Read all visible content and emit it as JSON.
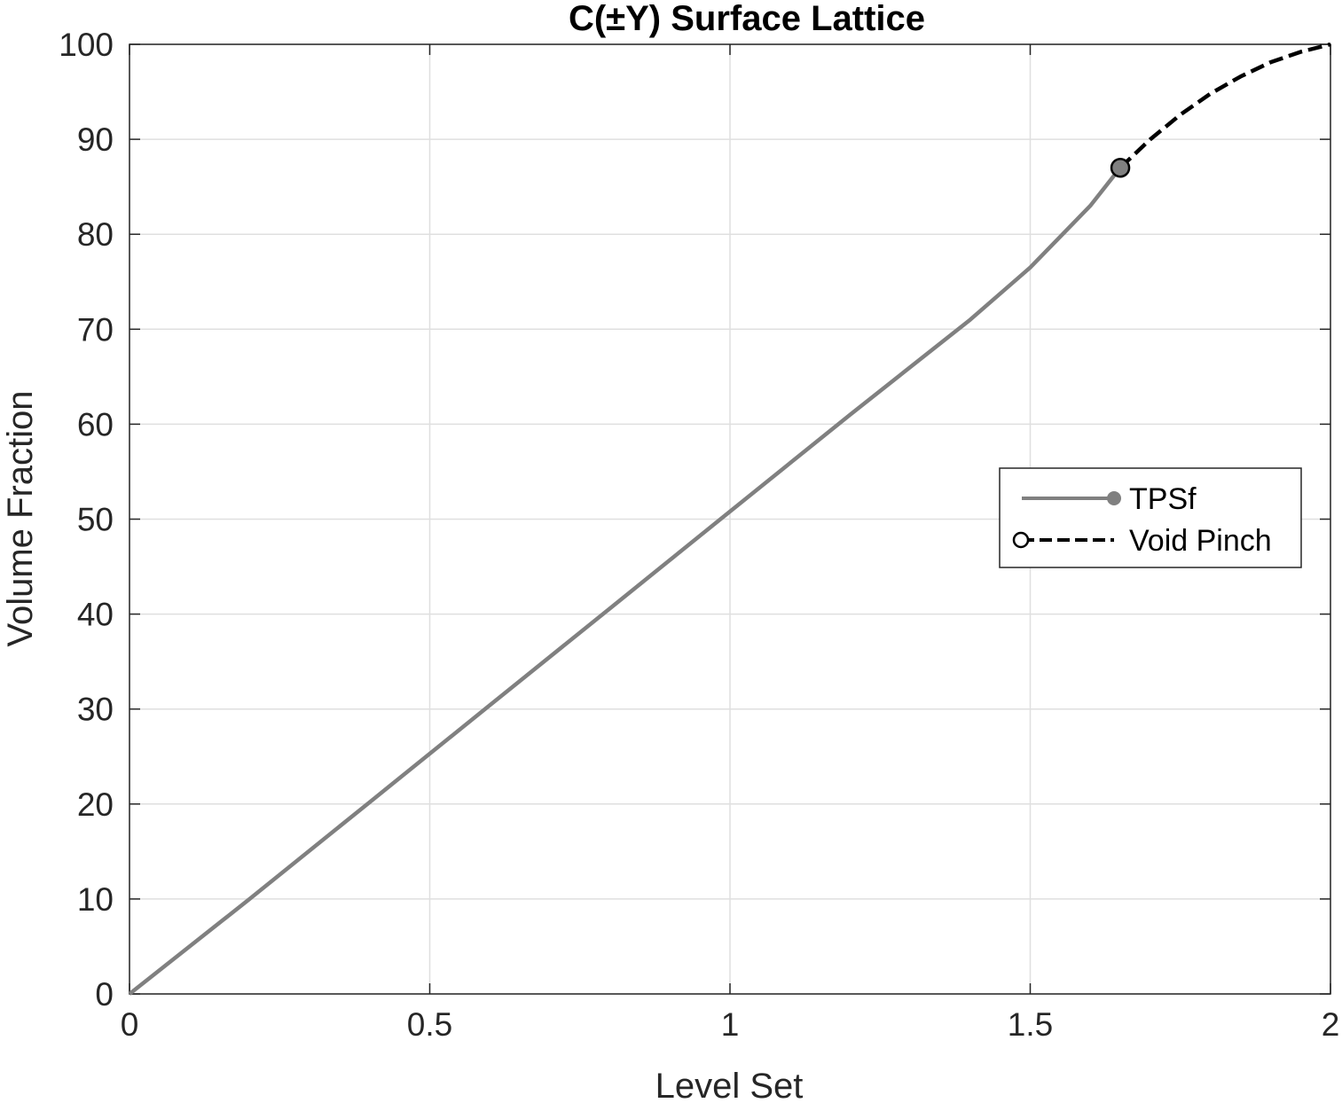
{
  "chart_data": {
    "type": "line",
    "title": "C(±Y) Surface Lattice",
    "xlabel": "Level Set",
    "ylabel": "Volume Fraction",
    "xlim": [
      0,
      2
    ],
    "ylim": [
      0,
      100
    ],
    "xticks": [
      0,
      0.5,
      1,
      1.5,
      2
    ],
    "xtick_labels": [
      "0",
      "0.5",
      "1",
      "1.5",
      "2"
    ],
    "yticks": [
      0,
      10,
      20,
      30,
      40,
      50,
      60,
      70,
      80,
      90,
      100
    ],
    "ytick_labels": [
      "0",
      "10",
      "20",
      "30",
      "40",
      "50",
      "60",
      "70",
      "80",
      "90",
      "100"
    ],
    "grid": true,
    "box": true,
    "legend_position": "right",
    "series": [
      {
        "name": "TPSf",
        "color": "#808080",
        "style": "solid",
        "marker": "filled-circle-at-end",
        "x": [
          0,
          0.2,
          0.4,
          0.6,
          0.8,
          1.0,
          1.2,
          1.4,
          1.5,
          1.6,
          1.65
        ],
        "y": [
          0,
          10,
          20.2,
          30.4,
          40.6,
          50.8,
          61.0,
          71.0,
          76.5,
          83.0,
          87.0
        ]
      },
      {
        "name": "Void Pinch",
        "color": "#000000",
        "style": "dashed",
        "marker": "open-circle-at-start",
        "x": [
          1.65,
          1.7,
          1.75,
          1.8,
          1.85,
          1.9,
          1.95,
          2.0
        ],
        "y": [
          87.0,
          90.0,
          92.6,
          94.8,
          96.6,
          98.1,
          99.2,
          100
        ]
      }
    ],
    "annotations": [
      {
        "type": "marker",
        "x": 1.65,
        "y": 87.0,
        "color": "#808080",
        "edge": "#000000"
      }
    ]
  }
}
